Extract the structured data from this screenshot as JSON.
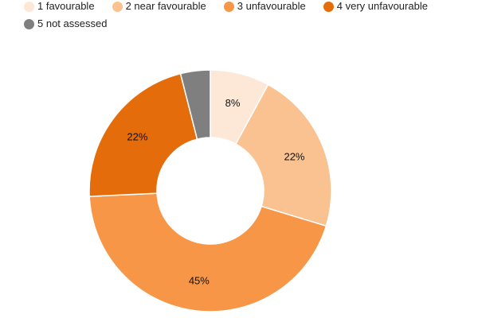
{
  "chart_data": {
    "type": "pie",
    "title": "",
    "donut": true,
    "legend_position": "top",
    "categories": [
      "1 favourable",
      "2 near favourable",
      "3 unfavourable",
      "4 very unfavourable",
      "5 not assessed"
    ],
    "values": [
      8,
      22,
      45,
      22,
      4
    ],
    "labels": [
      "8%",
      "22%",
      "45%",
      "22%",
      ""
    ],
    "colors": [
      "#fde8d8",
      "#f9c290",
      "#f79646",
      "#e46c0a",
      "#7f7f7f"
    ]
  }
}
